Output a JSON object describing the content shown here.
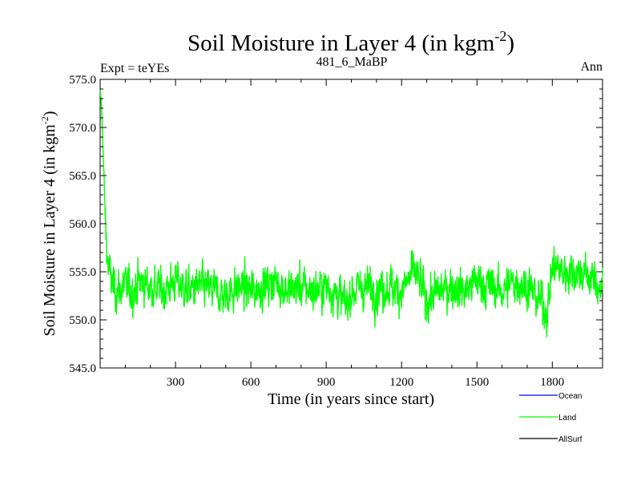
{
  "chart_data": {
    "type": "line",
    "title_main": "Soil Moisture in Layer 4 (in kgm",
    "title_sup": "-2",
    "title_close": ")",
    "subtitle_left": "Expt = teYEs",
    "subtitle_center": "481_6_MaBP",
    "subtitle_right": "Ann",
    "xlabel": "Time (in years since start)",
    "ylabel_main": "Soil Moisture in Layer 4 (in kgm",
    "ylabel_sup": "-2",
    "ylabel_close": ")",
    "xlim": [
      0,
      2000
    ],
    "ylim": [
      545,
      575
    ],
    "xticks": [
      300,
      600,
      900,
      1200,
      1500,
      1800
    ],
    "xtick_labels": [
      "300",
      "600",
      "900",
      "1200",
      "1500",
      "1800"
    ],
    "yticks": [
      545,
      550,
      555,
      560,
      565,
      570,
      575
    ],
    "ytick_labels": [
      "545.0",
      "550.0",
      "555.0",
      "560.0",
      "565.0",
      "570.0",
      "575.0"
    ],
    "legend": [
      {
        "name": "Ocean",
        "color": "#0000ff"
      },
      {
        "name": "Land",
        "color": "#00ff00"
      },
      {
        "name": "AllSurf",
        "color": "#000000"
      }
    ],
    "series": [
      {
        "name": "Land",
        "color": "#00ff00",
        "x": [
          0,
          5,
          10,
          15,
          20,
          25,
          30,
          40,
          50,
          75,
          100,
          130,
          160,
          200,
          250,
          300,
          350,
          400,
          450,
          500,
          550,
          600,
          650,
          700,
          750,
          800,
          850,
          900,
          950,
          980,
          1000,
          1050,
          1100,
          1150,
          1200,
          1250,
          1270,
          1300,
          1350,
          1400,
          1450,
          1500,
          1550,
          1600,
          1650,
          1700,
          1750,
          1780,
          1800,
          1850,
          1900,
          1950,
          2000
        ],
        "values": [
          573.5,
          572.5,
          569.0,
          565.0,
          561.0,
          558.0,
          556.0,
          554.5,
          553.5,
          553.0,
          553.5,
          553.0,
          554.0,
          553.5,
          553.0,
          554.0,
          553.0,
          553.5,
          553.0,
          552.5,
          553.5,
          553.0,
          553.5,
          554.0,
          553.0,
          553.5,
          553.0,
          553.5,
          552.5,
          551.5,
          553.0,
          553.5,
          553.0,
          553.5,
          553.0,
          555.0,
          554.0,
          552.0,
          553.0,
          553.5,
          553.0,
          554.0,
          553.5,
          553.0,
          554.0,
          553.5,
          552.0,
          551.0,
          555.5,
          555.0,
          555.0,
          554.5,
          553.0
        ]
      },
      {
        "name": "Ocean",
        "color": "#0000ff",
        "x": [],
        "values": []
      },
      {
        "name": "AllSurf",
        "color": "#000000",
        "x": [],
        "values": []
      }
    ]
  }
}
